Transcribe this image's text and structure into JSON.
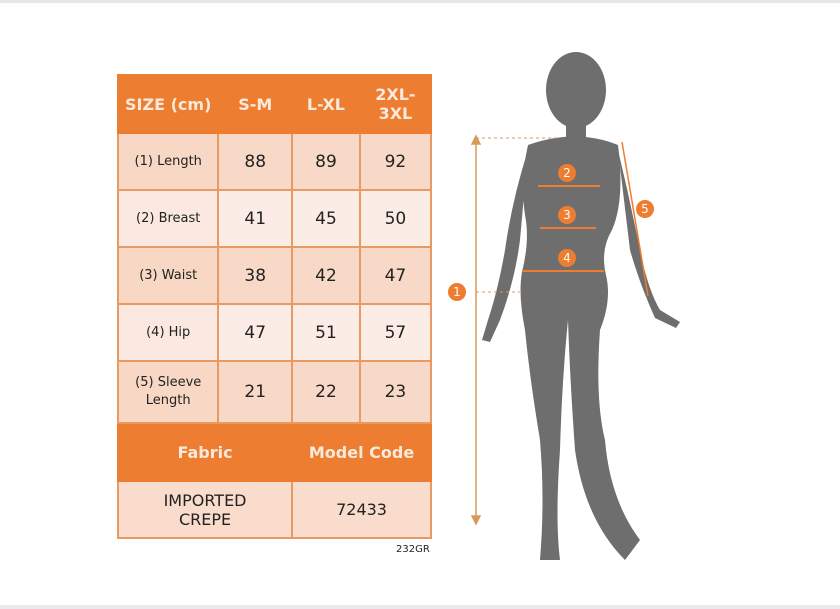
{
  "size_table": {
    "header": [
      "SIZE (cm)",
      "S-M",
      "L-XL",
      "2XL-3XL"
    ],
    "rows": [
      {
        "label": "(1) Length",
        "values": [
          "88",
          "89",
          "92"
        ]
      },
      {
        "label": "(2) Breast",
        "values": [
          "41",
          "45",
          "50"
        ]
      },
      {
        "label": "(3) Waist",
        "values": [
          "38",
          "42",
          "47"
        ]
      },
      {
        "label": "(4) Hip",
        "values": [
          "47",
          "51",
          "57"
        ]
      },
      {
        "label": "(5) Sleeve Length",
        "values": [
          "21",
          "22",
          "23"
        ]
      }
    ],
    "footer_headers": [
      "Fabric",
      "Model Code"
    ],
    "footer_values": [
      "IMPORTED CREPE",
      "72433"
    ]
  },
  "product_code": "232GR",
  "figure": {
    "markers": [
      "1",
      "2",
      "3",
      "4",
      "5"
    ],
    "accent_color": "#ed7d31",
    "silhouette_color": "#6e6e6e"
  }
}
